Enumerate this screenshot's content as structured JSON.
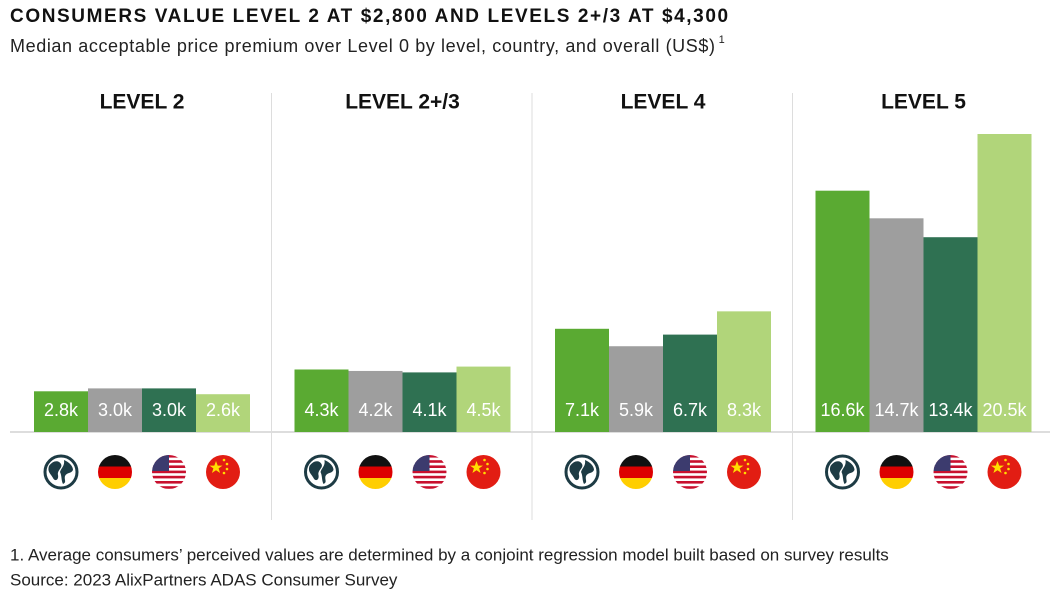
{
  "chart_data": {
    "type": "bar",
    "title": "CONSUMERS VALUE LEVEL 2 AT $2,800 AND LEVELS 2+/3 AT $4,300",
    "subtitle": "Median acceptable price premium over Level 0 by level, country, and overall (US$)",
    "subtitle_note": "1",
    "categories": [
      "LEVEL 2",
      "LEVEL 2+/3",
      "LEVEL 4",
      "LEVEL 5"
    ],
    "series": [
      {
        "color": "#5aaa32",
        "values": [
          2.8,
          4.3,
          7.1,
          16.6
        ],
        "value_labels": [
          "2.8k",
          "4.3k",
          "7.1k",
          "16.6k"
        ]
      },
      {
        "color": "#9e9e9e",
        "values": [
          3.0,
          4.2,
          5.9,
          14.7
        ],
        "value_labels": [
          "3.0k",
          "4.2k",
          "5.9k",
          "14.7k"
        ]
      },
      {
        "color": "#2f7152",
        "values": [
          3.0,
          4.1,
          6.7,
          13.4
        ],
        "value_labels": [
          "3.0k",
          "4.1k",
          "6.7k",
          "13.4k"
        ]
      },
      {
        "color": "#b1d57a",
        "values": [
          2.6,
          4.5,
          8.3,
          20.5
        ],
        "value_labels": [
          "2.6k",
          "4.5k",
          "8.3k",
          "20.5k"
        ]
      }
    ],
    "notes": [
      "1. Average consumers’ perceived values are determined by a conjoint regression model built based on survey results",
      "Source: 2023 AlixPartners ADAS Consumer Survey"
    ]
  }
}
